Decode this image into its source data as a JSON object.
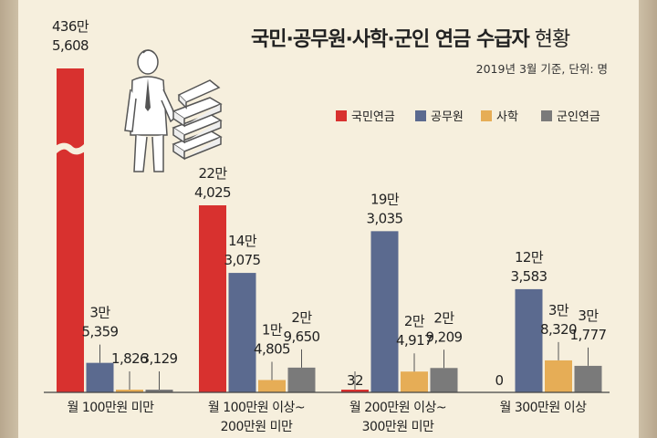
{
  "title": "국민·공무원·사학·군인 연금 수급자",
  "title_suffix": "현황",
  "subtitle": "2019년 3월 기준, 단위: 명",
  "colors": {
    "국민연금": "#d8312f",
    "공무원": "#5b6a8f",
    "사학": "#e6ad56",
    "군인연금": "#7a7a7a"
  },
  "chart_data": {
    "type": "bar",
    "title": "국민·공무원·사학·군인 연금 수급자 현황",
    "subtitle": "2019년 3월 기준, 단위: 명",
    "categories": [
      [
        "월 100만원 미만"
      ],
      [
        "월 100만원 이상~",
        "200만원 미만"
      ],
      [
        "월 200만원 이상~",
        "300만원 미만"
      ],
      [
        "월 300만원 이상"
      ]
    ],
    "series": [
      {
        "name": "국민연금",
        "color": "#d8312f",
        "values": [
          4365608,
          224025,
          32,
          0
        ],
        "labels": [
          [
            "436만",
            "5,608"
          ],
          [
            "22만",
            "4,025"
          ],
          [
            "32"
          ],
          [
            "0"
          ]
        ]
      },
      {
        "name": "공무원",
        "color": "#5b6a8f",
        "values": [
          35359,
          143075,
          193035,
          123583
        ],
        "labels": [
          [
            "3만",
            "5,359"
          ],
          [
            "14만",
            "3,075"
          ],
          [
            "19만",
            "3,035"
          ],
          [
            "12만",
            "3,583"
          ]
        ]
      },
      {
        "name": "사학",
        "color": "#e6ad56",
        "values": [
          1826,
          14805,
          24917,
          38320
        ],
        "labels": [
          [
            "1,826"
          ],
          [
            "1만",
            "4,805"
          ],
          [
            "2만",
            "4,917"
          ],
          [
            "3만",
            "8,320"
          ]
        ]
      },
      {
        "name": "군인연금",
        "color": "#7a7a7a",
        "values": [
          3129,
          29650,
          29209,
          31777
        ],
        "labels": [
          [
            "3,129"
          ],
          [
            "2만",
            "9,650"
          ],
          [
            "2만",
            "9,209"
          ],
          [
            "3만",
            "1,777"
          ]
        ]
      }
    ],
    "axis_break": "국민연금 bar in first category is truncated (broken axis)",
    "legend_position": "top-right",
    "grid": false
  }
}
